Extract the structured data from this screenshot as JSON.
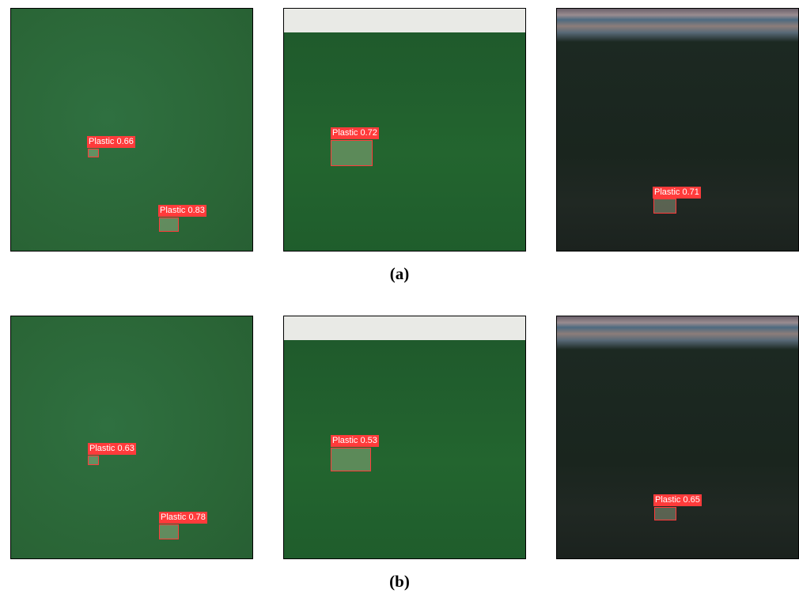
{
  "figure": {
    "rows": [
      {
        "caption": "(a)",
        "panels": [
          {
            "detections": [
              {
                "label": "Plastic 0.66"
              },
              {
                "label": "Plastic 0.83"
              }
            ]
          },
          {
            "detections": [
              {
                "label": "Plastic 0.72"
              }
            ]
          },
          {
            "detections": [
              {
                "label": "Plastic 0.71"
              }
            ]
          }
        ]
      },
      {
        "caption": "(b)",
        "panels": [
          {
            "detections": [
              {
                "label": "Plastic 0.63"
              },
              {
                "label": "Plastic 0.78"
              }
            ]
          },
          {
            "detections": [
              {
                "label": "Plastic 0.53"
              }
            ]
          },
          {
            "detections": [
              {
                "label": "Plastic 0.65"
              }
            ]
          }
        ]
      }
    ]
  }
}
